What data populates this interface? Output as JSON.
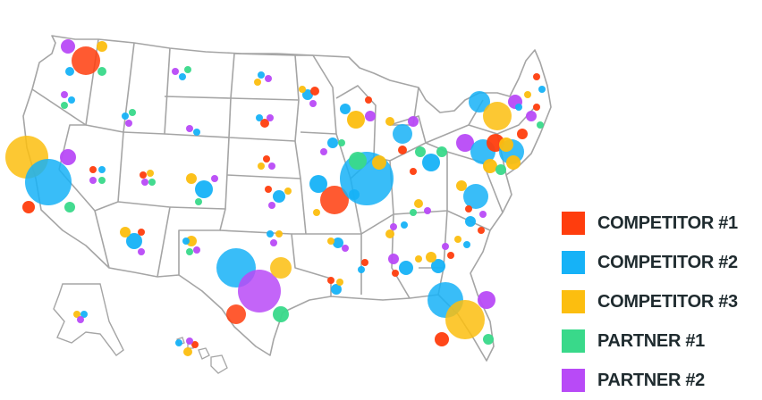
{
  "legend": [
    {
      "key": "c1",
      "label": "COMPETITOR #1",
      "color": "#ff3d0d"
    },
    {
      "key": "c2",
      "label": "COMPETITOR #2",
      "color": "#16b2f7"
    },
    {
      "key": "c3",
      "label": "COMPETITOR #3",
      "color": "#fcbe0f"
    },
    {
      "key": "p1",
      "label": "PARTNER #1",
      "color": "#39d98a"
    },
    {
      "key": "p2",
      "label": "PARTNER #2",
      "color": "#b84af7"
    }
  ],
  "map": {
    "region": "United States",
    "border_color": "#a5a5a5"
  },
  "locations": [
    {
      "state": "WA",
      "c1": 2,
      "c2": 1,
      "c3": 1,
      "p1": 1,
      "p2": 1
    },
    {
      "state": "OR",
      "c2": 1,
      "p1": 1,
      "p2": 1
    },
    {
      "state": "CA",
      "c1": 1,
      "c2": 3,
      "c3": 3,
      "p1": 1,
      "p2": 1
    },
    {
      "state": "TX",
      "c1": 1,
      "c2": 3,
      "c3": 1,
      "p1": 1,
      "p2": 3
    },
    {
      "state": "MO",
      "c1": 2,
      "c2": 1
    },
    {
      "state": "IL",
      "c2": 3,
      "p1": 1
    },
    {
      "state": "NJ",
      "c2": 2,
      "c3": 1,
      "c1": 1
    },
    {
      "state": "CT",
      "c3": 2
    },
    {
      "state": "FL",
      "c2": 2,
      "c3": 2,
      "c1": 1,
      "p1": 1,
      "p2": 1
    }
  ]
}
